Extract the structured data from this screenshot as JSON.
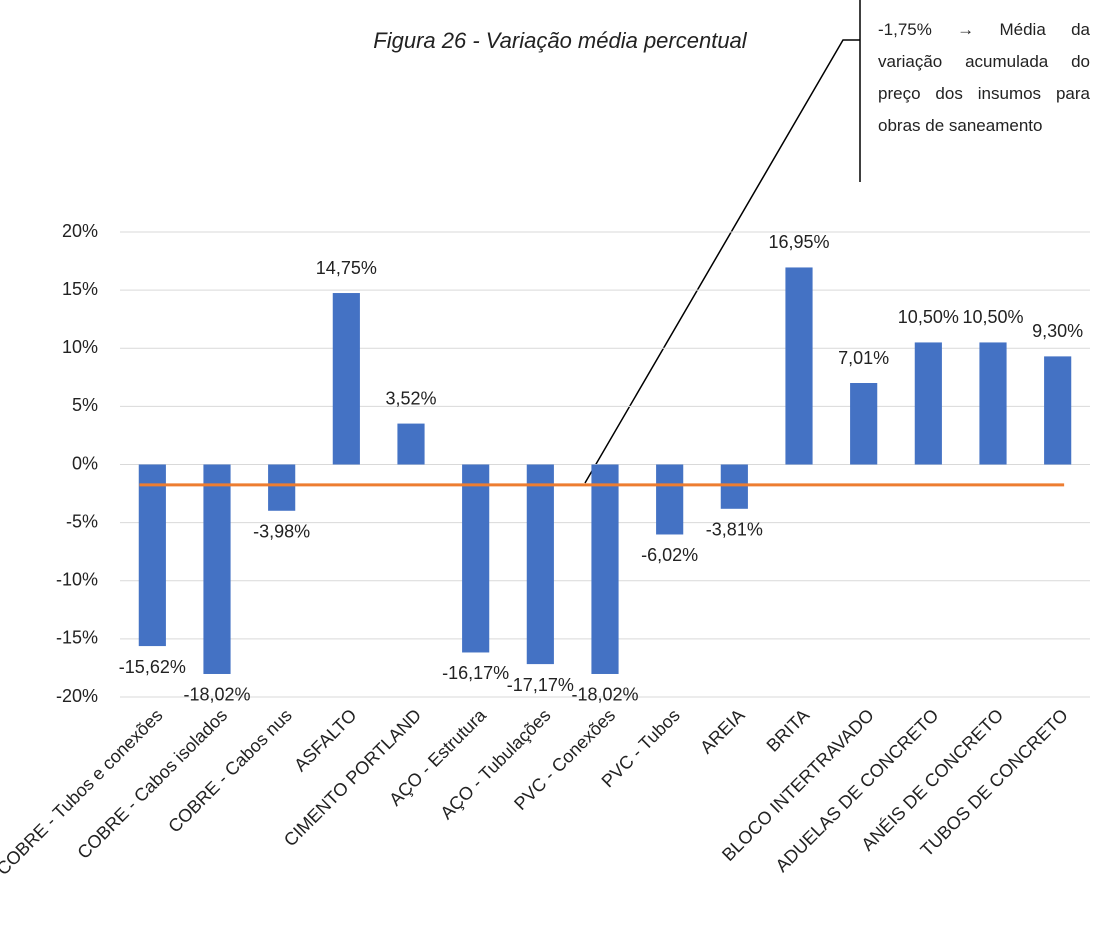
{
  "chart_data": {
    "type": "bar",
    "title": "Figura 26 - Variação média percentual",
    "categories": [
      "COBRE - Tubos e conexões",
      "COBRE - Cabos isolados",
      "COBRE - Cabos nus",
      "ASFALTO",
      "CIMENTO PORTLAND",
      "AÇO - Estrutura",
      "AÇO - Tubulações",
      "PVC - Conexões",
      "PVC - Tubos",
      "AREIA",
      "BRITA",
      "BLOCO INTERTRAVADO",
      "ADUELAS DE CONCRETO",
      "ANÉIS DE CONCRETO",
      "TUBOS DE CONCRETO"
    ],
    "values": [
      -15.62,
      -18.02,
      -3.98,
      14.75,
      3.52,
      -16.17,
      -17.17,
      -18.02,
      -6.02,
      -3.81,
      16.95,
      7.01,
      10.5,
      10.5,
      9.3
    ],
    "value_labels": [
      "-15,62%",
      "-18,02%",
      "-3,98%",
      "14,75%",
      "3,52%",
      "-16,17%",
      "-17,17%",
      "-18,02%",
      "-6,02%",
      "-3,81%",
      "16,95%",
      "7,01%",
      "10,50%",
      "10,50%",
      "9,30%"
    ],
    "color": "#4472c4",
    "ylim": [
      -20,
      20
    ],
    "yticks": [
      {
        "value": -20,
        "label": "-20%"
      },
      {
        "value": -15,
        "label": "-15%"
      },
      {
        "value": -10,
        "label": "-10%"
      },
      {
        "value": -5,
        "label": "-5%"
      },
      {
        "value": 0,
        "label": "0%"
      },
      {
        "value": 5,
        "label": "5%"
      },
      {
        "value": 10,
        "label": "10%"
      },
      {
        "value": 15,
        "label": "15%"
      },
      {
        "value": 20,
        "label": "20%"
      }
    ],
    "grid": true,
    "reference_line": {
      "value": -1.75,
      "color": "#ed7d31"
    },
    "annotation": "-1,75% → Média da variação acumulada do preço dos insumos para obras de saneamento"
  }
}
